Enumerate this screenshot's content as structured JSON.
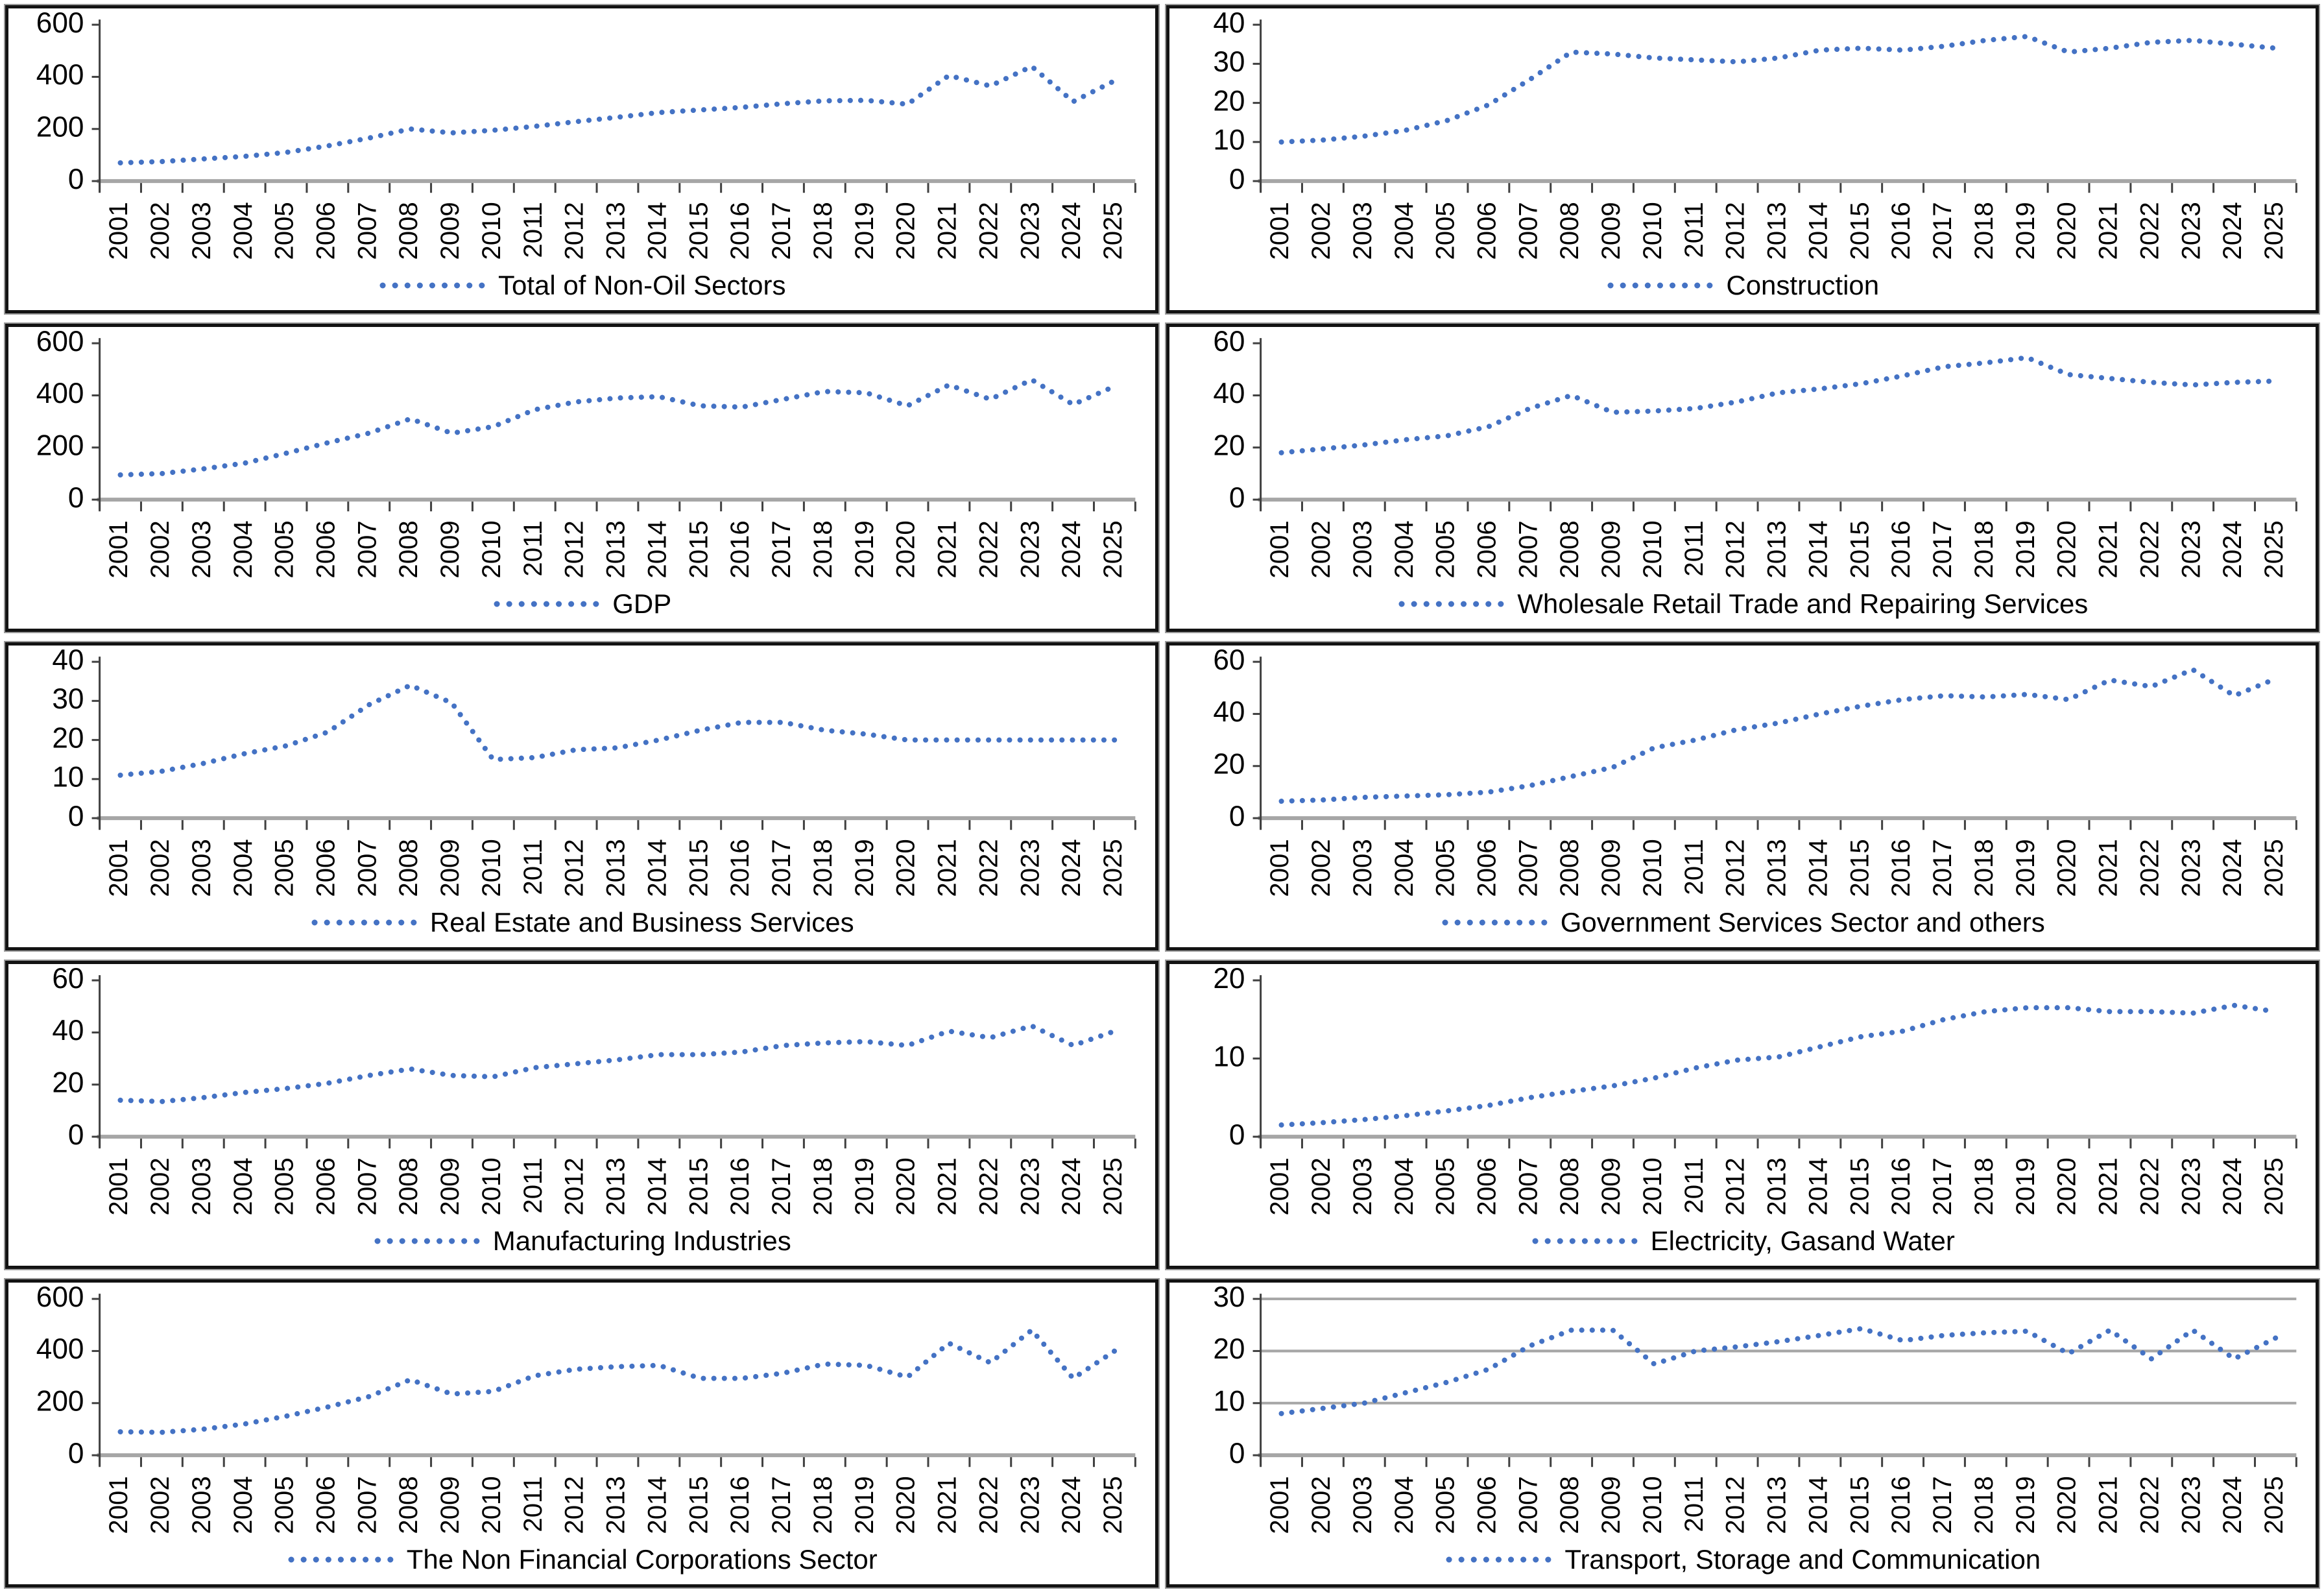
{
  "colors": {
    "series": "#4472C4",
    "gridline": "#a6a6a6",
    "axis_line": "#a6a6a6",
    "tick": "#404040",
    "text": "#000000",
    "panel_border": "#131313"
  },
  "years": [
    "2001",
    "2002",
    "2003",
    "2004",
    "2005",
    "2006",
    "2007",
    "2008",
    "2009",
    "2010",
    "2011",
    "2012",
    "2013",
    "2014",
    "2015",
    "2016",
    "2017",
    "2018",
    "2019",
    "2020",
    "2021",
    "2022",
    "2023",
    "2024",
    "2025"
  ],
  "chart_data": [
    {
      "type": "line",
      "legend_label": "Total of Non-Oil Sectors",
      "ymax": 600,
      "yticks": [
        0,
        200,
        400,
        600
      ],
      "gridlines": false,
      "values": [
        70,
        75,
        85,
        95,
        110,
        135,
        165,
        200,
        185,
        195,
        210,
        228,
        245,
        263,
        273,
        283,
        297,
        308,
        310,
        295,
        405,
        365,
        440,
        305,
        385
      ]
    },
    {
      "type": "line",
      "legend_label": "Construction",
      "ymax": 40,
      "yticks": [
        0,
        10,
        20,
        30,
        40
      ],
      "gridlines": false,
      "values": [
        10,
        10.5,
        11.5,
        13,
        15.5,
        19.5,
        26,
        33,
        32.5,
        31.5,
        31,
        30.5,
        31.5,
        33.5,
        34,
        33.5,
        34.5,
        36,
        37,
        33,
        34,
        35.5,
        36,
        35,
        34
      ]
    },
    {
      "type": "line",
      "legend_label": "GDP",
      "ymax": 600,
      "yticks": [
        0,
        200,
        400,
        600
      ],
      "gridlines": false,
      "values": [
        95,
        100,
        118,
        140,
        178,
        218,
        255,
        310,
        255,
        280,
        345,
        375,
        390,
        395,
        360,
        355,
        385,
        415,
        410,
        360,
        440,
        385,
        460,
        365,
        435
      ]
    },
    {
      "type": "line",
      "legend_label": "Wholesale Retail Trade and Repairing Services",
      "ymax": 60,
      "yticks": [
        0,
        20,
        40,
        60
      ],
      "gridlines": false,
      "values": [
        18,
        19.5,
        21,
        23,
        24.5,
        28,
        35,
        40,
        33.5,
        34,
        35,
        37.5,
        41,
        42.5,
        44.5,
        47.5,
        51,
        52.5,
        54.5,
        48,
        46.5,
        45,
        44,
        45,
        45.5
      ]
    },
    {
      "type": "line",
      "legend_label": "Real Estate and Business Services",
      "ymax": 40,
      "yticks": [
        0,
        10,
        20,
        30,
        40
      ],
      "gridlines": false,
      "values": [
        11,
        12,
        14,
        16.5,
        18.5,
        22,
        29,
        34,
        29.5,
        15,
        15.5,
        17.5,
        18,
        20,
        22.5,
        24.5,
        24.5,
        22.5,
        21.5,
        20,
        20,
        20,
        20,
        20,
        20
      ]
    },
    {
      "type": "line",
      "legend_label": "Government Services Sector and others",
      "ymax": 60,
      "yticks": [
        0,
        20,
        40,
        60
      ],
      "gridlines": false,
      "values": [
        6.5,
        7,
        8,
        8.5,
        9,
        10,
        12.5,
        16,
        19.5,
        27,
        30,
        34,
        36.5,
        40,
        43,
        45.5,
        47,
        46.5,
        47.5,
        45.5,
        53,
        50.5,
        57,
        47,
        53.5
      ]
    },
    {
      "type": "line",
      "legend_label": "Manufacturing Industries",
      "ymax": 60,
      "yticks": [
        0,
        20,
        40,
        60
      ],
      "gridlines": false,
      "values": [
        14,
        13.5,
        15,
        17,
        18.5,
        20.5,
        23.5,
        26,
        23.5,
        23,
        26.5,
        28,
        29.5,
        31.5,
        31.5,
        32.5,
        35,
        36,
        36.5,
        35,
        40.5,
        38,
        42.5,
        35,
        40.5
      ]
    },
    {
      "type": "line",
      "legend_label": "Electricity, Gasand Water",
      "ymax": 20,
      "yticks": [
        0,
        10,
        20
      ],
      "gridlines": false,
      "values": [
        1.5,
        1.8,
        2.2,
        2.7,
        3.3,
        4,
        5,
        5.8,
        6.5,
        7.5,
        8.8,
        9.8,
        10.2,
        11.5,
        12.8,
        13.5,
        15,
        16,
        16.5,
        16.5,
        16,
        16,
        15.8,
        16.8,
        16
      ]
    },
    {
      "type": "line",
      "legend_label": "The Non Financial Corporations Sector",
      "ymax": 600,
      "yticks": [
        0,
        200,
        400,
        600
      ],
      "gridlines": false,
      "values": [
        90,
        88,
        100,
        120,
        150,
        185,
        225,
        290,
        235,
        245,
        305,
        330,
        340,
        345,
        295,
        295,
        315,
        350,
        345,
        300,
        430,
        355,
        480,
        295,
        400
      ]
    },
    {
      "type": "line",
      "legend_label": "Transport, Storage and Communication",
      "ymax": 30,
      "yticks": [
        0,
        10,
        20,
        30
      ],
      "gridlines": true,
      "values": [
        8,
        9,
        10,
        12,
        14,
        16.5,
        21,
        24,
        24,
        17.5,
        20,
        20.8,
        21.8,
        23,
        24.3,
        22,
        23,
        23.5,
        23.8,
        19.5,
        24,
        18.5,
        24,
        18.5,
        22.5
      ]
    }
  ]
}
